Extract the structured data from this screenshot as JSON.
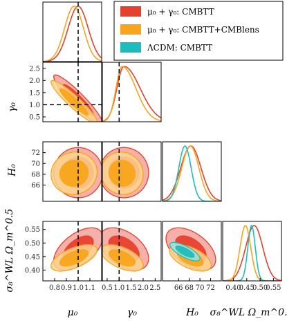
{
  "chart_data": {
    "type": "corner",
    "parameters": [
      {
        "key": "mu0",
        "label": "μ₀",
        "range": [
          0.7,
          1.2
        ],
        "ticks": [
          0.8,
          0.9,
          1.0,
          1.1
        ],
        "tick_labels": [
          "0.8",
          "0.9",
          "1.0",
          "1.1"
        ],
        "reference": 1.0
      },
      {
        "key": "gamma0",
        "label": "γ₀",
        "range": [
          0.3,
          2.75
        ],
        "ticks": [
          0.5,
          1.0,
          1.5,
          2.0,
          2.5
        ],
        "tick_labels": [
          "0.5",
          "1.0",
          "1.5",
          "2.0",
          "2.5"
        ],
        "reference": 1.0
      },
      {
        "key": "H0",
        "label": "H₀",
        "range": [
          63.0,
          74.0
        ],
        "ticks": [
          66,
          68,
          70,
          72
        ],
        "tick_labels": [
          "66",
          "68",
          "70",
          "72"
        ]
      },
      {
        "key": "s8om",
        "label": "σ₈^WL Ω_m^0.5",
        "range": [
          0.36,
          0.58
        ],
        "ticks": [
          0.4,
          0.45,
          0.5,
          0.55
        ],
        "tick_labels": [
          "0.40",
          "0.45",
          "0.50",
          "0.55"
        ]
      }
    ],
    "series": [
      {
        "name": "μ₀ + γ₀: CMBTT",
        "color": "#e8402e",
        "fill": "#f3a29a",
        "means": [
          1.0,
          1.2,
          68.3,
          0.478
        ],
        "sigmas": [
          0.085,
          0.42,
          1.9,
          0.032
        ],
        "params": [
          "mu0",
          "gamma0",
          "H0",
          "s8om"
        ]
      },
      {
        "name": "μ₀ + γ₀: CMBTT+CMBlens",
        "color": "#f8a51b",
        "fill": "#fbd38e",
        "means": [
          0.965,
          1.12,
          68.2,
          0.445
        ],
        "sigmas": [
          0.08,
          0.36,
          1.6,
          0.02
        ],
        "params": [
          "mu0",
          "gamma0",
          "H0",
          "s8om"
        ]
      },
      {
        "name": "ΛCDM: CMBTT",
        "color": "#1ebdbd",
        "fill": "#9ee0e0",
        "means": [
          67.2,
          0.468
        ],
        "sigmas": [
          1.15,
          0.014
        ],
        "params": [
          "H0",
          "s8om"
        ]
      }
    ],
    "legend": {
      "position": "top-right"
    }
  }
}
